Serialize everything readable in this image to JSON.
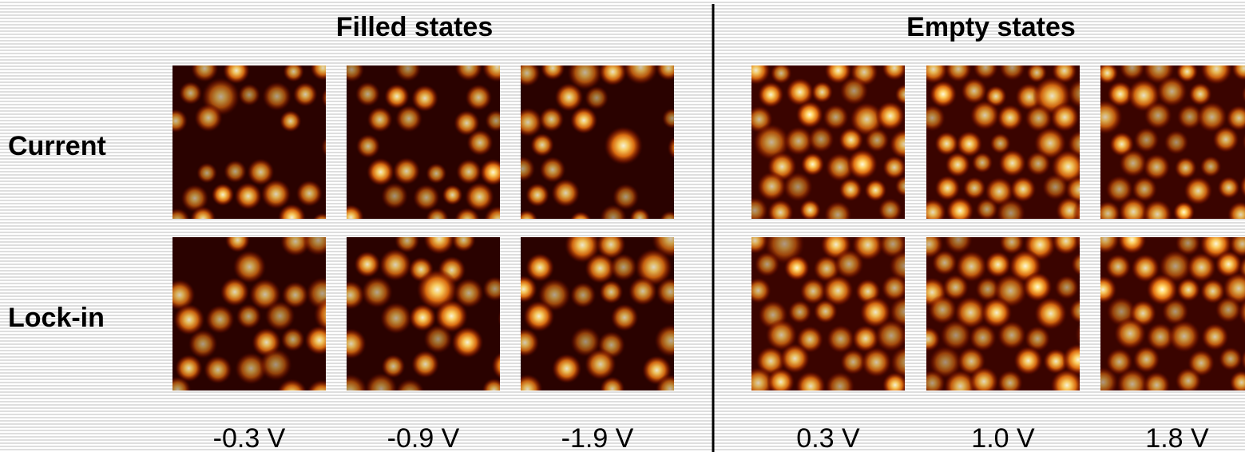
{
  "groups": [
    {
      "title": "Filled states",
      "voltages": [
        "-0.3 V",
        "-0.9 V",
        "-1.9 V"
      ]
    },
    {
      "title": "Empty states",
      "voltages": [
        "0.3 V",
        "1.0 V",
        "1.8 V"
      ]
    }
  ],
  "rows": [
    "Current",
    "Lock-in"
  ]
}
